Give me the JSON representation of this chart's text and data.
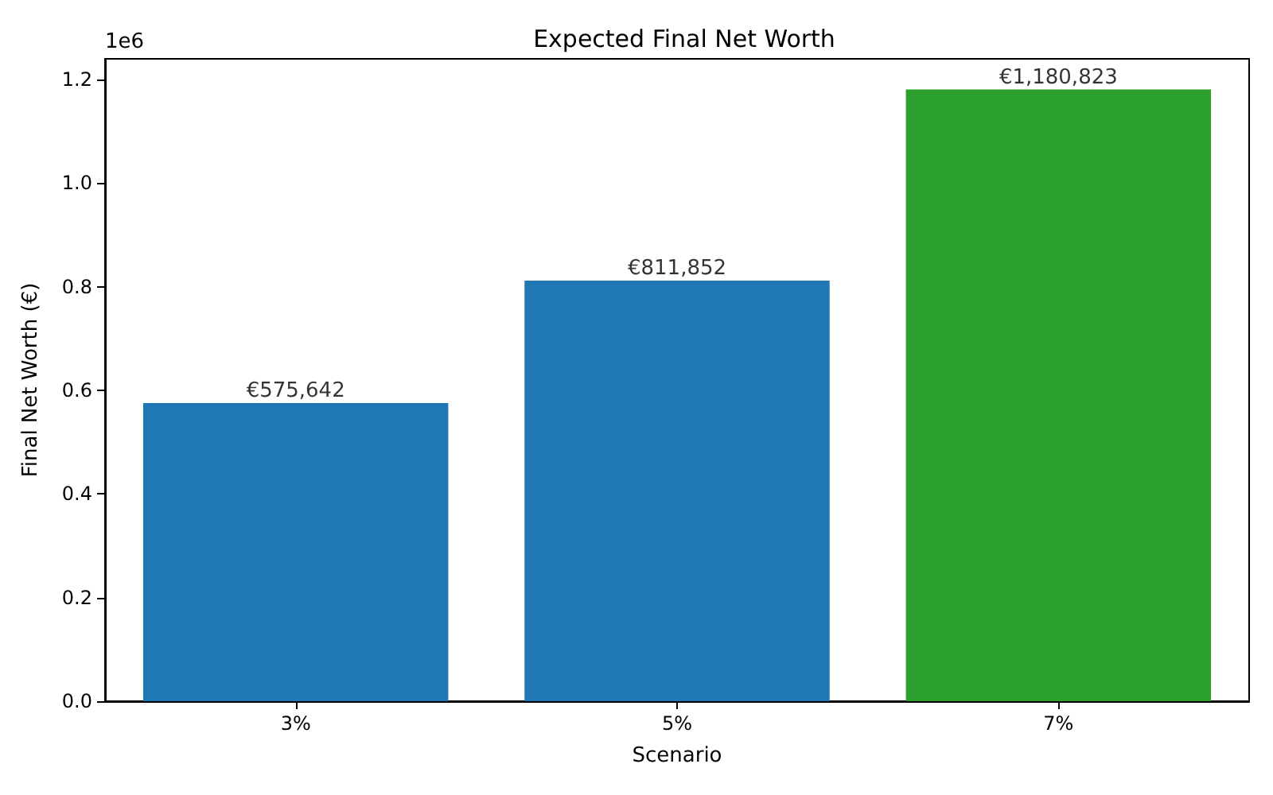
{
  "chart_data": {
    "type": "bar",
    "title": "Expected Final Net Worth",
    "xlabel": "Scenario",
    "ylabel": "Final Net Worth (€)",
    "categories": [
      "3%",
      "5%",
      "7%"
    ],
    "values": [
      0.575642,
      0.811852,
      1.180823
    ],
    "colors": [
      "#1f77b4",
      "#1f77b4",
      "#2ca02c"
    ],
    "ylim": [
      0,
      1.24
    ],
    "yticks": [
      {
        "value": 0,
        "label": "0.0"
      },
      0.2,
      0.4,
      0.6,
      0.8,
      {
        "value": 1,
        "label": "1.0"
      },
      1.2
    ],
    "annotations": [
      "1e6",
      {
        "text": "€575,642",
        "x": "3%",
        "y": 0.575642
      },
      {
        "text": "€811,852",
        "x": "5%",
        "y": 0.811852
      },
      {
        "text": "€1,180,823",
        "x": "7%",
        "y": 1.180823
      }
    ],
    "grid": false
  }
}
